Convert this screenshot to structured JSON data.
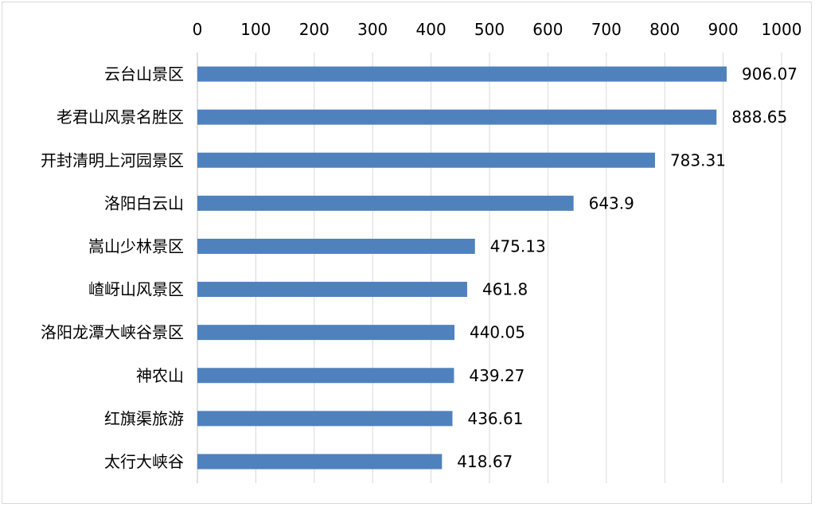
{
  "chart_data": {
    "type": "bar",
    "orientation": "horizontal",
    "categories": [
      "云台山景区",
      "老君山风景名胜区",
      "开封清明上河园景区",
      "洛阳白云山",
      "嵩山少林景区",
      "嵖岈山风景区",
      "洛阳龙潭大峡谷景区",
      "神农山",
      "红旗渠旅游",
      "太行大峡谷"
    ],
    "values": [
      906.07,
      888.65,
      783.31,
      643.9,
      475.13,
      461.8,
      440.05,
      439.27,
      436.61,
      418.67
    ],
    "value_labels": [
      "906.07",
      "888.65",
      "783.31",
      "643.9",
      "475.13",
      "461.8",
      "440.05",
      "439.27",
      "436.61",
      "418.67"
    ],
    "xlim": [
      0,
      1000
    ],
    "ticks": [
      "0",
      "100",
      "200",
      "300",
      "400",
      "500",
      "600",
      "700",
      "800",
      "900",
      "1000"
    ],
    "tick_position": "top",
    "grid": true,
    "title": "",
    "xlabel": "",
    "ylabel": "",
    "bar_color": "#4f81bd"
  }
}
